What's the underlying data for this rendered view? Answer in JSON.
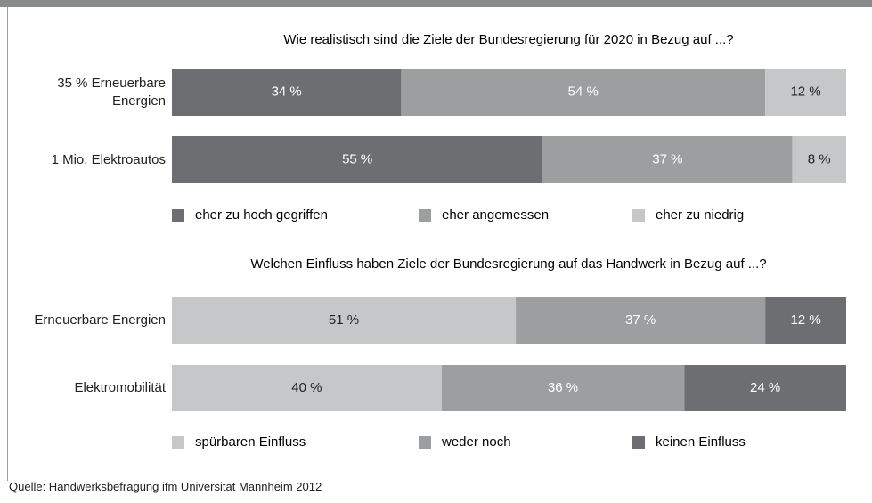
{
  "chart_data": [
    {
      "type": "stacked-bar-horizontal",
      "title": "Wie realistisch sind die Ziele der Bundesregierung für 2020 in Bezug auf ...?",
      "categories": [
        "35 % Erneuerbare Energien",
        "1 Mio. Elektroautos"
      ],
      "xlim": [
        0,
        100
      ],
      "series": [
        {
          "name": "eher zu hoch gegriffen",
          "color": "#6d6e71",
          "values": [
            34,
            55
          ],
          "value_labels": [
            "34 %",
            "55 %"
          ]
        },
        {
          "name": "eher angemessen",
          "color": "#9d9ea0",
          "values": [
            54,
            37
          ],
          "value_labels": [
            "54 %",
            "37 %"
          ]
        },
        {
          "name": "eher zu niedrig",
          "color": "#c6c7c9",
          "values": [
            12,
            8
          ],
          "value_labels": [
            "12 %",
            "8 %"
          ]
        }
      ]
    },
    {
      "type": "stacked-bar-horizontal",
      "title": "Welchen Einfluss haben Ziele der Bundesregierung auf das Handwerk in Bezug auf ...?",
      "categories": [
        "Erneuerbare Energien",
        "Elektromobilität"
      ],
      "xlim": [
        0,
        100
      ],
      "series": [
        {
          "name": "spürbaren Einfluss",
          "color": "#c6c7c9",
          "values": [
            51,
            40
          ],
          "value_labels": [
            "51 %",
            "40 %"
          ]
        },
        {
          "name": "weder noch",
          "color": "#9d9ea0",
          "values": [
            37,
            36
          ],
          "value_labels": [
            "37 %",
            "36 %"
          ]
        },
        {
          "name": "keinen Einfluss",
          "color": "#6d6e71",
          "values": [
            12,
            24
          ],
          "value_labels": [
            "12 %",
            "24 %"
          ]
        }
      ]
    }
  ],
  "source": "Quelle: Handwerksbefragung ifm Universität Mannheim 2012"
}
